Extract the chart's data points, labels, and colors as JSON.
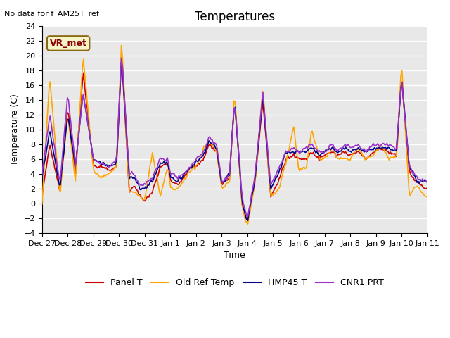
{
  "title": "Temperatures",
  "xlabel": "Time",
  "ylabel": "Temperature (C)",
  "ylim": [
    -4,
    24
  ],
  "yticks": [
    -4,
    -2,
    0,
    2,
    4,
    6,
    8,
    10,
    12,
    14,
    16,
    18,
    20,
    22,
    24
  ],
  "xtick_labels": [
    "Dec 27",
    "Dec 28",
    "Dec 29",
    "Dec 30",
    "Dec 31",
    "Jan 1",
    "Jan 2",
    "Jan 3",
    "Jan 4",
    "Jan 5",
    "Jan 6",
    "Jan 7",
    "Jan 8",
    "Jan 9",
    "Jan 10",
    "Jan 11"
  ],
  "annotation_text": "No data for f_AM25T_ref",
  "box_label": "VR_met",
  "bg_color": "#e8e8e8",
  "grid_color": "#ffffff",
  "series": {
    "Panel T": {
      "color": "#cc0000",
      "lw": 1.2
    },
    "Old Ref Temp": {
      "color": "#ffa500",
      "lw": 1.2
    },
    "HMP45 T": {
      "color": "#00008b",
      "lw": 1.2
    },
    "CNR1 PRT": {
      "color": "#9932cc",
      "lw": 1.2
    }
  },
  "n_points": 336
}
